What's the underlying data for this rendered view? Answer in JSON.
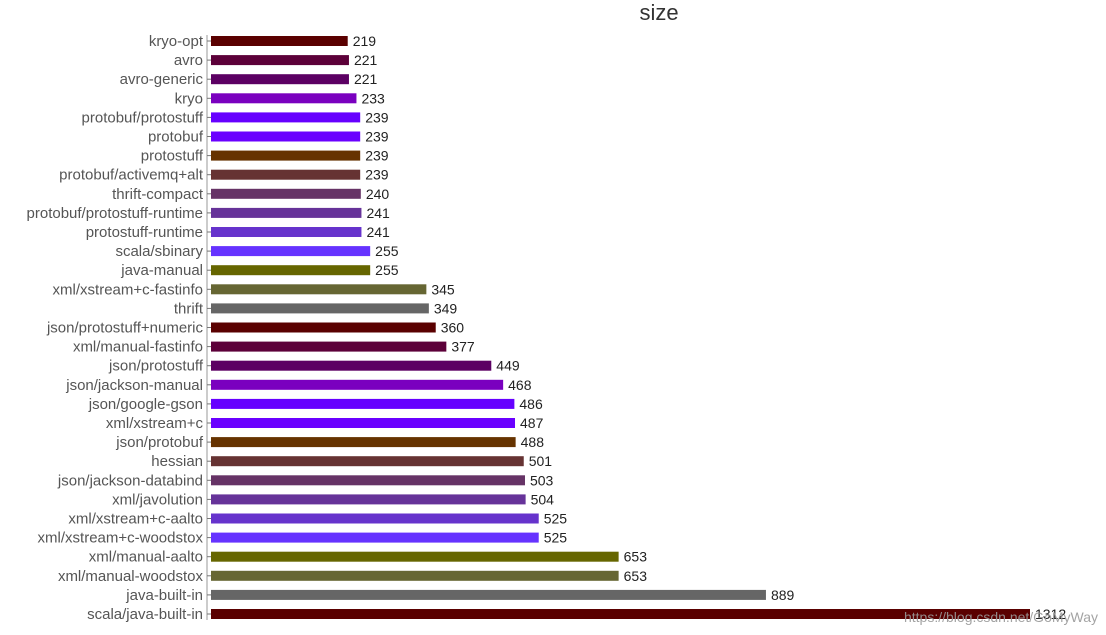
{
  "chart_data": {
    "type": "bar",
    "orientation": "horizontal",
    "title": "size",
    "xlabel": "",
    "ylabel": "",
    "xlim": [
      0,
      1312
    ],
    "grid": false,
    "legend": "none",
    "categories": [
      "kryo-opt",
      "avro",
      "avro-generic",
      "kryo",
      "protobuf/protostuff",
      "protobuf",
      "protostuff",
      "protobuf/activemq+alt",
      "thrift-compact",
      "protobuf/protostuff-runtime",
      "protostuff-runtime",
      "scala/sbinary",
      "java-manual",
      "xml/xstream+c-fastinfo",
      "thrift",
      "json/protostuff+numeric",
      "xml/manual-fastinfo",
      "json/protostuff",
      "json/jackson-manual",
      "json/google-gson",
      "xml/xstream+c",
      "json/protobuf",
      "hessian",
      "json/jackson-databind",
      "xml/javolution",
      "xml/xstream+c-aalto",
      "xml/xstream+c-woodstox",
      "xml/manual-aalto",
      "xml/manual-woodstox",
      "java-built-in",
      "scala/java-built-in"
    ],
    "values": [
      219,
      221,
      221,
      233,
      239,
      239,
      239,
      239,
      240,
      241,
      241,
      255,
      255,
      345,
      349,
      360,
      377,
      449,
      468,
      486,
      487,
      488,
      501,
      503,
      504,
      525,
      525,
      653,
      653,
      889,
      1312
    ],
    "colors": [
      "#5a0000",
      "#5c0039",
      "#5c0063",
      "#7a00bf",
      "#6600ff",
      "#6a00ff",
      "#663300",
      "#663333",
      "#663366",
      "#663399",
      "#6633cc",
      "#6633ff",
      "#666600",
      "#666633",
      "#666666",
      "#5a0000",
      "#5c0039",
      "#5c0063",
      "#7a00bf",
      "#6600ff",
      "#6a00ff",
      "#663300",
      "#663333",
      "#663366",
      "#663399",
      "#6633cc",
      "#6633ff",
      "#666600",
      "#666633",
      "#666666",
      "#5a0000"
    ]
  },
  "watermark": {
    "text": "https://blog.csdn.net/GoMyWay"
  }
}
